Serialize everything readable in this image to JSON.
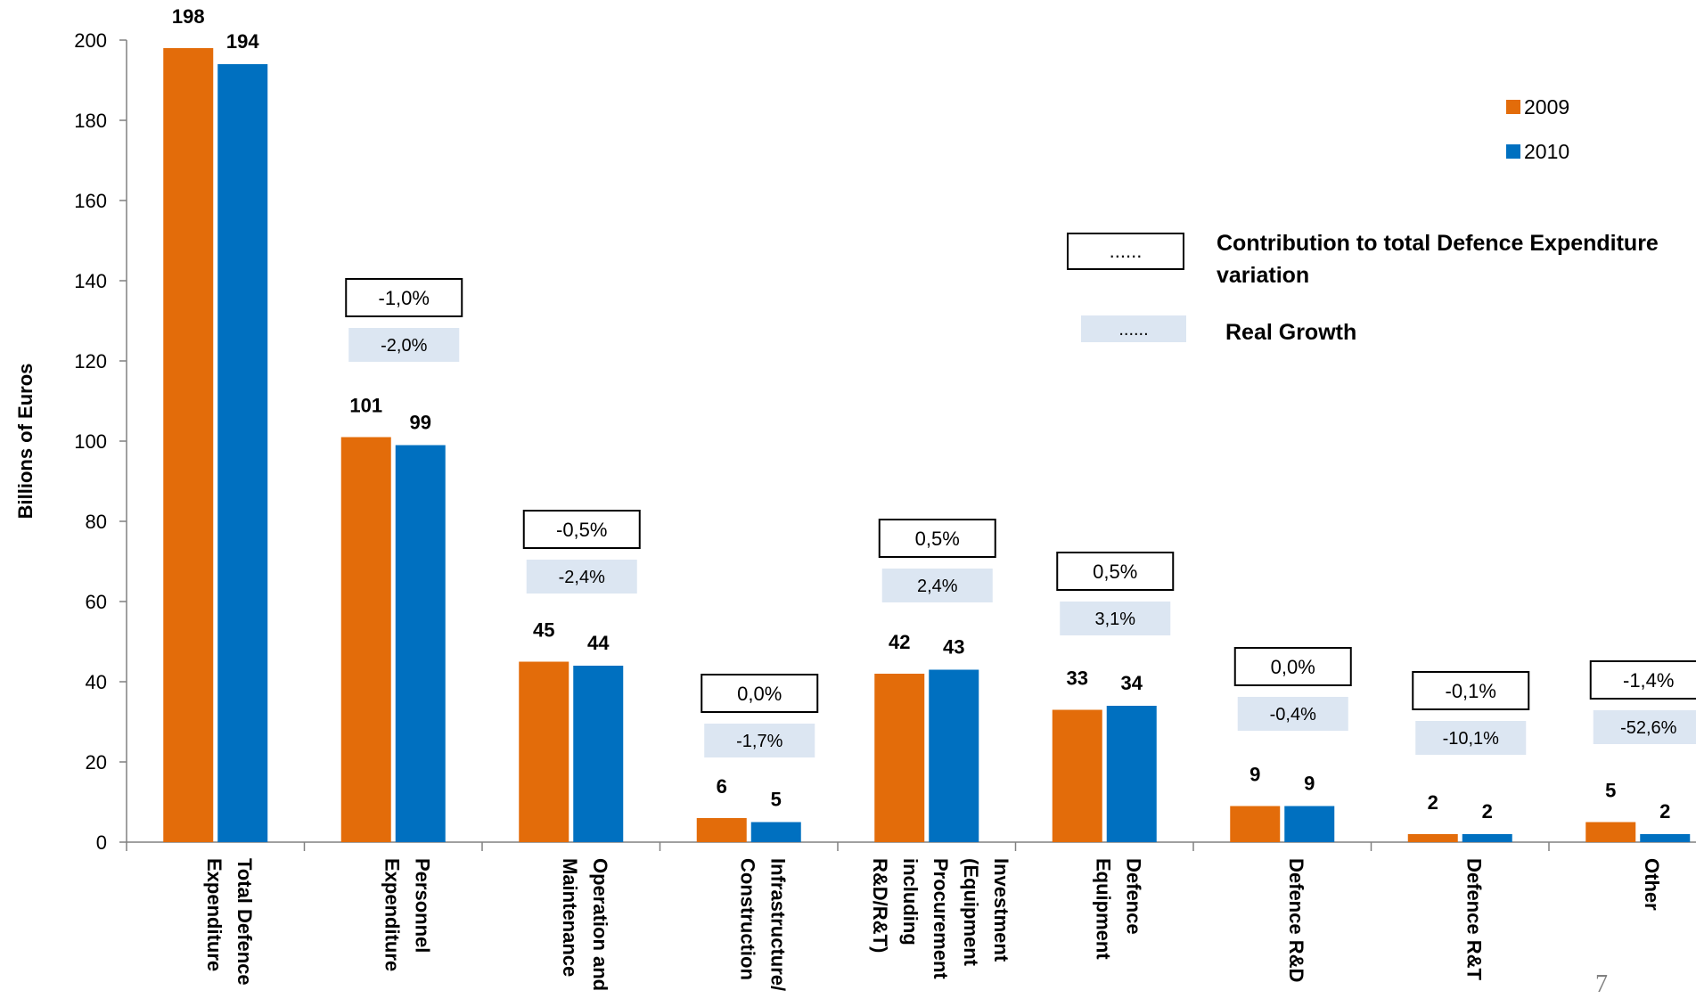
{
  "chart_data": {
    "type": "bar",
    "ylabel": "Billions of Euros",
    "ylim": [
      0,
      200
    ],
    "yticks": [
      "0",
      "20",
      "40",
      "60",
      "80",
      "100",
      "120",
      "140",
      "160",
      "180",
      "200"
    ],
    "categories": [
      [
        "Total Defence",
        "Expenditure"
      ],
      [
        "Personnel",
        "Expenditure"
      ],
      [
        "Operation and",
        "Maintenance"
      ],
      [
        "Infrastructure/",
        "Construction"
      ],
      [
        "Investment",
        "(Equipment",
        "Procurement",
        "including",
        "R&D/R&T)"
      ],
      [
        "Defence",
        "Equipment"
      ],
      [
        "Defence R&D"
      ],
      [
        "Defence R&T"
      ],
      [
        "Other"
      ]
    ],
    "series": [
      {
        "name": "2009",
        "color": "#E36C0A",
        "values": [
          198,
          101,
          45,
          6,
          42,
          33,
          9,
          2,
          5
        ],
        "labels": [
          "198",
          "101",
          "45",
          "6",
          "42",
          "33",
          "9",
          "2",
          "5"
        ]
      },
      {
        "name": "2010",
        "color": "#0070C0",
        "values": [
          194,
          99,
          44,
          5,
          43,
          34,
          9,
          2,
          2
        ],
        "labels": [
          "194",
          "99",
          "44",
          "5",
          "43",
          "34",
          "9",
          "2",
          "2"
        ]
      }
    ],
    "contribution_to_total": [
      null,
      "-1,0%",
      "-0,5%",
      "0,0%",
      "0,5%",
      "0,5%",
      "0,0%",
      "-0,1%",
      "-1,4%"
    ],
    "real_growth": [
      null,
      "-2,0%",
      "-2,4%",
      "-1,7%",
      "2,4%",
      "3,1%",
      "-0,4%",
      "-10,1%",
      "-52,6%"
    ],
    "legend": {
      "position": "top-right"
    },
    "key": {
      "contribution_label": [
        "Contribution to total Defence Expenditure",
        "variation"
      ],
      "real_growth_label": "Real Growth",
      "placeholder": "......"
    },
    "growth_box_color": "#DCE6F2"
  },
  "page_number": "7"
}
